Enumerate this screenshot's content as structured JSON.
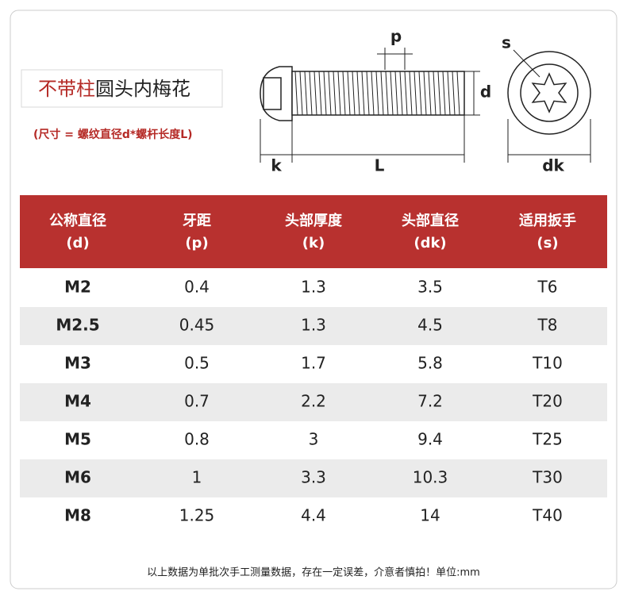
{
  "title": {
    "highlight": "不带柱",
    "rest": "圆头内梅花"
  },
  "subtitle": "(尺寸 = 螺纹直径d*螺杆长度L)",
  "diagram": {
    "p": "p",
    "d": "d",
    "k": "k",
    "L": "L",
    "s": "s",
    "dk": "dk"
  },
  "table": {
    "header": [
      [
        "公称直径",
        "(d)"
      ],
      [
        "牙距",
        "(p)"
      ],
      [
        "头部厚度",
        "(k)"
      ],
      [
        "头部直径",
        "(dk)"
      ],
      [
        "适用扳手",
        "(s)"
      ]
    ],
    "rows": [
      [
        "M2",
        "0.4",
        "1.3",
        "3.5",
        "T6"
      ],
      [
        "M2.5",
        "0.45",
        "1.3",
        "4.5",
        "T8"
      ],
      [
        "M3",
        "0.5",
        "1.7",
        "5.8",
        "T10"
      ],
      [
        "M4",
        "0.7",
        "2.2",
        "7.2",
        "T20"
      ],
      [
        "M5",
        "0.8",
        "3",
        "9.4",
        "T25"
      ],
      [
        "M6",
        "1",
        "3.3",
        "10.3",
        "T30"
      ],
      [
        "M8",
        "1.25",
        "4.4",
        "14",
        "T40"
      ]
    ]
  },
  "footer": "以上数据为单批次手工测量数据，存在一定误差，介意者慎拍！单位:mm"
}
